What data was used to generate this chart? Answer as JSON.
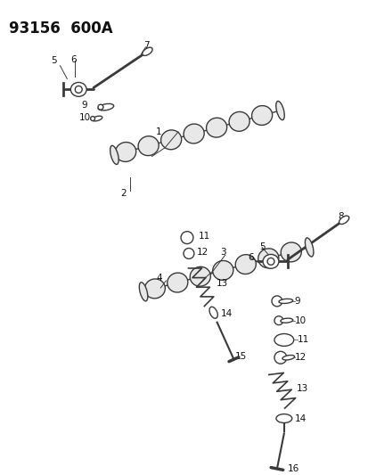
{
  "title": "93156  600A",
  "bg_color": "#ffffff",
  "line_color": "#3a3a3a",
  "text_color": "#111111",
  "fig_width": 4.14,
  "fig_height": 5.33,
  "dpi": 100
}
